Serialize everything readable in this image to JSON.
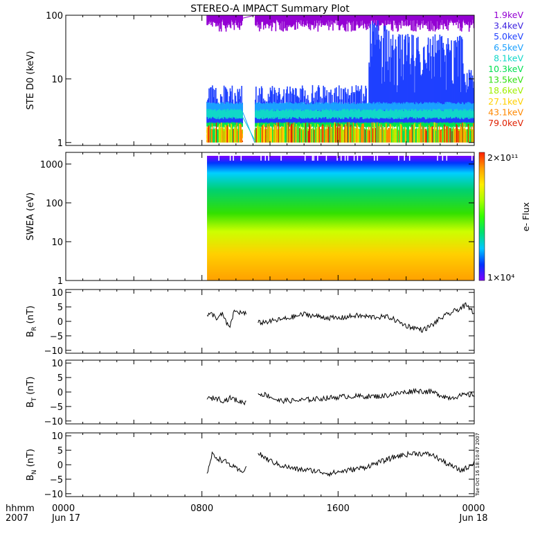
{
  "title": "STEREO-A IMPACT Summary Plot",
  "stamp": "Tue Oct 16 18:10:47 2007",
  "time_axis": {
    "row1_label": "hhmm",
    "row2_label": "2007",
    "ticks": [
      {
        "hours": 0,
        "label": "0000",
        "date": "Jun 17"
      },
      {
        "hours": 8,
        "label": "0800",
        "date": ""
      },
      {
        "hours": 16,
        "label": "1600",
        "date": ""
      },
      {
        "hours": 24,
        "label": "0000",
        "date": "Jun 18"
      }
    ],
    "range_hours": [
      0,
      24
    ]
  },
  "colorbar": {
    "label": "e- Flux",
    "max_label": "2×10¹¹",
    "min_label": "1×10⁴",
    "colors": [
      "#7f00ff",
      "#0033ff",
      "#00c8ff",
      "#00e070",
      "#33ff00",
      "#aaff00",
      "#ffee00",
      "#ffa000",
      "#ff2000"
    ]
  },
  "chart_data": [
    {
      "type": "line",
      "ylabel": "STE D0 (keV)",
      "yscale": "log",
      "ylim": [
        0.9,
        100
      ],
      "yticks": [
        {
          "v": 1,
          "label": "1"
        },
        {
          "v": 10,
          "label": "10"
        },
        {
          "v": 100,
          "label": "100"
        }
      ],
      "data_start_hours": 8.3,
      "gap_hours": [
        10.4,
        11.1
      ],
      "legend": [
        {
          "label": "1.9keV",
          "color": "#9400d3"
        },
        {
          "label": "3.4keV",
          "color": "#3a1fe0"
        },
        {
          "label": "5.0keV",
          "color": "#1f40ff"
        },
        {
          "label": "6.5keV",
          "color": "#1aa0ff"
        },
        {
          "label": "8.1keV",
          "color": "#10d8c8"
        },
        {
          "label": "10.3keV",
          "color": "#00e050"
        },
        {
          "label": "13.5keV",
          "color": "#30e010"
        },
        {
          "label": "18.6keV",
          "color": "#a0f000"
        },
        {
          "label": "27.1keV",
          "color": "#ffd000"
        },
        {
          "label": "43.1keV",
          "color": "#ff8800"
        },
        {
          "label": "79.0keV",
          "color": "#e02000"
        }
      ],
      "series_levels": [
        {
          "color": "#9400d3",
          "base": 80,
          "spread": 1.2
        },
        {
          "color": "#1f40ff",
          "base": 5,
          "spread": 1.4
        },
        {
          "color": "#1aa0ff",
          "base": 3.6,
          "spread": 1.1
        },
        {
          "color": "#10d8c8",
          "base": 2.8,
          "spread": 1.1
        },
        {
          "color": "#00e050",
          "base": 1.9,
          "spread": 1.05
        },
        {
          "color": "#a0f000",
          "base": 1.5,
          "spread": 1.05
        },
        {
          "color": "#ffd000",
          "base": 1.25,
          "spread": 1.05
        },
        {
          "color": "#e02000",
          "base": 1.05,
          "spread": 1.02
        }
      ],
      "enhancement": {
        "start_hours": 17.8,
        "peak_keV": 80
      }
    },
    {
      "type": "heatmap",
      "ylabel": "SWEA (eV)",
      "yscale": "log",
      "ylim": [
        1,
        2000
      ],
      "yticks": [
        {
          "v": 1,
          "label": "1"
        },
        {
          "v": 10,
          "label": "10"
        },
        {
          "v": 100,
          "label": "100"
        },
        {
          "v": 1000,
          "label": "1000"
        }
      ],
      "data_start_hours": 8.3,
      "energy_color_stops": [
        {
          "eV": 1,
          "color": "#ffa000"
        },
        {
          "eV": 5,
          "color": "#ffd000"
        },
        {
          "eV": 20,
          "color": "#ccff00"
        },
        {
          "eV": 60,
          "color": "#33e000"
        },
        {
          "eV": 250,
          "color": "#00d070"
        },
        {
          "eV": 700,
          "color": "#00d0ff"
        },
        {
          "eV": 1300,
          "color": "#0033ff"
        },
        {
          "eV": 2000,
          "color": "#7f00ff"
        }
      ]
    },
    {
      "type": "line",
      "ylabel": "B_R (nT)",
      "ylabel_main": "B",
      "ylabel_sub": "R",
      "ylabel_unit": " (nT)",
      "ylim": [
        -11,
        11
      ],
      "yticks": [
        {
          "v": 10,
          "label": "10"
        },
        {
          "v": 5,
          "label": "5"
        },
        {
          "v": 0,
          "label": "0"
        },
        {
          "v": -5,
          "label": "−5"
        },
        {
          "v": -10,
          "label": "−10"
        }
      ],
      "series": [
        {
          "name": "B_R",
          "color": "#000000",
          "points": [
            [
              8.3,
              2
            ],
            [
              8.6,
              2.5
            ],
            [
              8.9,
              1
            ],
            [
              9.2,
              2.5
            ],
            [
              9.6,
              -2.5
            ],
            [
              9.9,
              3.5
            ],
            [
              10.3,
              3
            ],
            [
              10.6,
              2.5
            ],
            [
              null,
              null
            ],
            [
              11.3,
              -0.5
            ],
            [
              12,
              0
            ],
            [
              13,
              1
            ],
            [
              14,
              2.5
            ],
            [
              15,
              1.5
            ],
            [
              16,
              1
            ],
            [
              17,
              2
            ],
            [
              18,
              1.5
            ],
            [
              19,
              1.5
            ],
            [
              20,
              -1.5
            ],
            [
              21,
              -3
            ],
            [
              21.6,
              -1
            ],
            [
              22,
              1
            ],
            [
              23,
              4
            ],
            [
              23.5,
              5.5
            ],
            [
              24,
              3
            ]
          ]
        }
      ]
    },
    {
      "type": "line",
      "ylabel": "B_T (nT)",
      "ylabel_main": "B",
      "ylabel_sub": "T",
      "ylabel_unit": " (nT)",
      "ylim": [
        -11,
        11
      ],
      "yticks": [
        {
          "v": 10,
          "label": "10"
        },
        {
          "v": 5,
          "label": "5"
        },
        {
          "v": 0,
          "label": "0"
        },
        {
          "v": -5,
          "label": "−5"
        },
        {
          "v": -10,
          "label": "−10"
        }
      ],
      "series": [
        {
          "name": "B_T",
          "color": "#000000",
          "points": [
            [
              8.3,
              -2.5
            ],
            [
              8.8,
              -2
            ],
            [
              9.3,
              -3
            ],
            [
              9.7,
              -2
            ],
            [
              10.3,
              -3.5
            ],
            [
              10.6,
              -3.5
            ],
            [
              null,
              null
            ],
            [
              11.3,
              -0.5
            ],
            [
              11.8,
              -1
            ],
            [
              12.5,
              -3
            ],
            [
              13.5,
              -3
            ],
            [
              14.5,
              -2.5
            ],
            [
              15.5,
              -2
            ],
            [
              16.5,
              -1.5
            ],
            [
              17.5,
              -1.5
            ],
            [
              18.5,
              -1.5
            ],
            [
              19.5,
              -0.5
            ],
            [
              20.5,
              0.5
            ],
            [
              21.5,
              0
            ],
            [
              22.5,
              -2
            ],
            [
              23.5,
              -1
            ],
            [
              24,
              -1
            ]
          ]
        }
      ]
    },
    {
      "type": "line",
      "ylabel": "B_N (nT)",
      "ylabel_main": "B",
      "ylabel_sub": "N",
      "ylabel_unit": " (nT)",
      "ylim": [
        -11,
        11
      ],
      "yticks": [
        {
          "v": 10,
          "label": "10"
        },
        {
          "v": 5,
          "label": "5"
        },
        {
          "v": 0,
          "label": "0"
        },
        {
          "v": -5,
          "label": "−5"
        },
        {
          "v": -10,
          "label": "−10"
        }
      ],
      "series": [
        {
          "name": "B_N",
          "color": "#000000",
          "points": [
            [
              8.3,
              -3
            ],
            [
              8.6,
              3.5
            ],
            [
              9,
              2
            ],
            [
              9.4,
              1
            ],
            [
              9.9,
              -1
            ],
            [
              10.3,
              -2.5
            ],
            [
              10.6,
              -1
            ],
            [
              null,
              null
            ],
            [
              11.3,
              4
            ],
            [
              11.8,
              2
            ],
            [
              12.5,
              0
            ],
            [
              13.5,
              -1.5
            ],
            [
              14.5,
              -2
            ],
            [
              15.5,
              -3
            ],
            [
              16.5,
              -2
            ],
            [
              17.5,
              -1
            ],
            [
              18.5,
              1
            ],
            [
              19.5,
              3
            ],
            [
              20.5,
              4
            ],
            [
              21.5,
              3.5
            ],
            [
              22.5,
              0
            ],
            [
              23.2,
              -2
            ],
            [
              23.6,
              -1
            ],
            [
              24,
              1
            ]
          ]
        }
      ]
    }
  ]
}
